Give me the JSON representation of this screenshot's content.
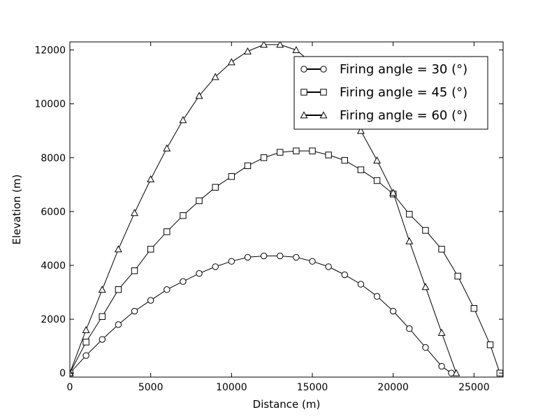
{
  "chart_data": {
    "type": "scatter",
    "title": "",
    "xlabel": "Distance (m)",
    "ylabel": "Elevation (m)",
    "xlim": [
      0,
      26800
    ],
    "ylim": [
      -150,
      12300
    ],
    "xticks": [
      0,
      5000,
      10000,
      15000,
      20000,
      25000
    ],
    "yticks": [
      0,
      2000,
      4000,
      6000,
      8000,
      10000,
      12000
    ],
    "xtick_labels": [
      "0",
      "5000",
      "10000",
      "15000",
      "20000",
      "25000"
    ],
    "ytick_labels": [
      "0",
      "2000",
      "4000",
      "6000",
      "8000",
      "10000",
      "12000"
    ],
    "grid": false,
    "legend_position": "top-right",
    "series": [
      {
        "name": "Firing angle = 30 (°)",
        "marker": "circle",
        "color": "#000000",
        "x": [
          0,
          1000,
          2000,
          3000,
          4000,
          5000,
          6000,
          7000,
          8000,
          9000,
          10000,
          11000,
          12000,
          13000,
          14000,
          15000,
          16000,
          17000,
          18000,
          19000,
          20000,
          21000,
          22000,
          23000,
          23600
        ],
        "y": [
          0,
          650,
          1250,
          1800,
          2300,
          2700,
          3100,
          3400,
          3700,
          3950,
          4150,
          4300,
          4350,
          4350,
          4300,
          4150,
          3950,
          3650,
          3300,
          2850,
          2300,
          1650,
          950,
          250,
          0
        ]
      },
      {
        "name": "Firing angle = 45 (°)",
        "marker": "square",
        "color": "#000000",
        "x": [
          0,
          1000,
          2000,
          3000,
          4000,
          5000,
          6000,
          7000,
          8000,
          9000,
          10000,
          11000,
          12000,
          13000,
          14000,
          15000,
          16000,
          17000,
          18000,
          19000,
          20000,
          21000,
          22000,
          23000,
          24000,
          25000,
          26000,
          26600
        ],
        "y": [
          0,
          1150,
          2100,
          3100,
          3800,
          4600,
          5250,
          5850,
          6400,
          6900,
          7300,
          7700,
          8000,
          8200,
          8250,
          8250,
          8100,
          7900,
          7550,
          7150,
          6650,
          5900,
          5300,
          4600,
          3600,
          2400,
          1050,
          0
        ]
      },
      {
        "name": "Firing angle = 60 (°)",
        "marker": "triangle",
        "color": "#000000",
        "x": [
          0,
          1000,
          2000,
          3000,
          4000,
          5000,
          6000,
          7000,
          8000,
          9000,
          10000,
          11000,
          12000,
          13000,
          14000,
          15000,
          16000,
          17000,
          18000,
          19000,
          20000,
          21000,
          22000,
          23000,
          23900
        ],
        "y": [
          0,
          1600,
          3100,
          4600,
          5950,
          7200,
          8350,
          9400,
          10300,
          11000,
          11550,
          11950,
          12200,
          12200,
          12000,
          11500,
          10900,
          10000,
          9000,
          7900,
          6700,
          4900,
          3200,
          1500,
          0
        ]
      }
    ]
  }
}
